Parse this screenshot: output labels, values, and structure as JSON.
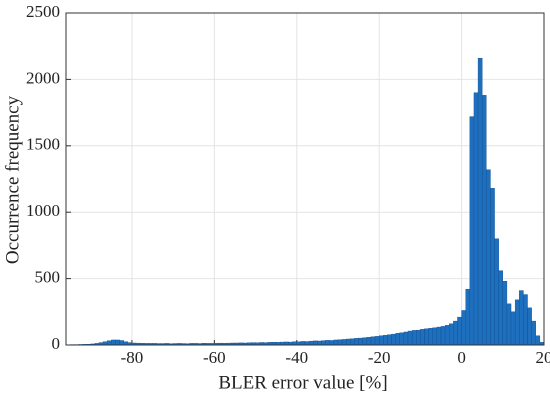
{
  "chart_data": {
    "type": "histogram",
    "x_label": "BLER error value [%]",
    "y_label": "Occurrence frequency",
    "bins": [
      -96,
      -95,
      -94,
      -93,
      -92,
      -91,
      -90,
      -89,
      -88,
      -87,
      -86,
      -85,
      -84,
      -83,
      -82,
      -81,
      -80,
      -79,
      -78,
      -77,
      -76,
      -75,
      -74,
      -73,
      -72,
      -71,
      -70,
      -69,
      -68,
      -67,
      -66,
      -65,
      -64,
      -63,
      -62,
      -61,
      -60,
      -59,
      -58,
      -57,
      -56,
      -55,
      -54,
      -53,
      -52,
      -51,
      -50,
      -49,
      -48,
      -47,
      -46,
      -45,
      -44,
      -43,
      -42,
      -41,
      -40,
      -39,
      -38,
      -37,
      -36,
      -35,
      -34,
      -33,
      -32,
      -31,
      -30,
      -29,
      -28,
      -27,
      -26,
      -25,
      -24,
      -23,
      -22,
      -21,
      -20,
      -19,
      -18,
      -17,
      -16,
      -15,
      -14,
      -13,
      -12,
      -11,
      -10,
      -9,
      -8,
      -7,
      -6,
      -5,
      -4,
      -3,
      -2,
      -1,
      0,
      1,
      2,
      3,
      4,
      5,
      6,
      7,
      8,
      9,
      10,
      11,
      12,
      13,
      14,
      15,
      16,
      17,
      18,
      19,
      20
    ],
    "values": [
      2,
      3,
      3,
      4,
      5,
      6,
      8,
      12,
      18,
      25,
      32,
      38,
      38,
      34,
      25,
      18,
      15,
      14,
      13,
      12,
      12,
      12,
      11,
      11,
      12,
      10,
      11,
      12,
      11,
      10,
      12,
      12,
      11,
      13,
      12,
      12,
      13,
      14,
      13,
      14,
      15,
      15,
      16,
      15,
      17,
      18,
      17,
      19,
      18,
      20,
      21,
      20,
      22,
      23,
      22,
      25,
      24,
      27,
      26,
      29,
      31,
      30,
      33,
      35,
      34,
      38,
      40,
      42,
      45,
      47,
      50,
      52,
      55,
      58,
      62,
      65,
      70,
      73,
      78,
      82,
      88,
      92,
      98,
      105,
      110,
      112,
      118,
      122,
      126,
      130,
      135,
      140,
      148,
      160,
      180,
      210,
      260,
      420,
      1720,
      1900,
      2160,
      1880,
      1320,
      1180,
      800,
      560,
      480,
      310,
      250,
      340,
      410,
      380,
      280,
      180,
      70,
      20
    ],
    "color": "#1f6fbf",
    "xlim": [
      -96,
      20
    ],
    "xticks": [
      -80,
      -60,
      -40,
      -20,
      0,
      20
    ],
    "ylim": [
      0,
      2500
    ],
    "yticks": [
      0,
      500,
      1000,
      1500,
      2000,
      2500
    ],
    "grid": true
  }
}
